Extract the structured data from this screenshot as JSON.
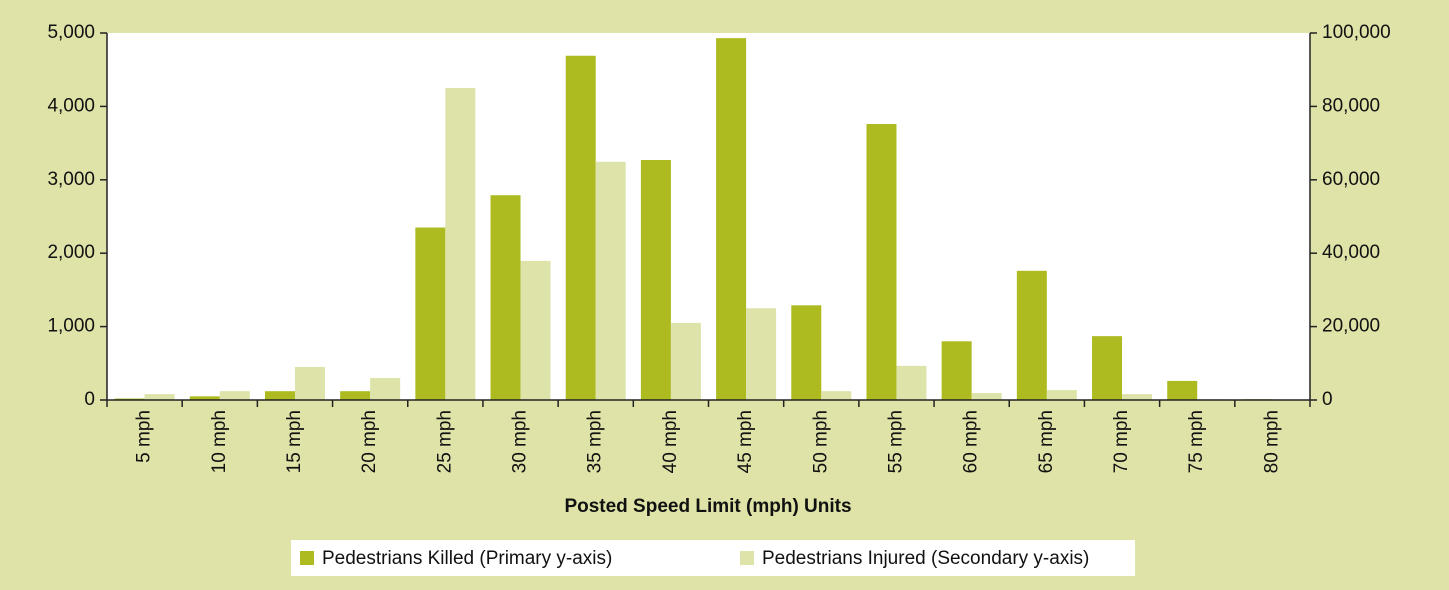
{
  "chart_data": {
    "type": "bar",
    "x_label": "Posted Speed Limit (mph) Units",
    "categories": [
      "5 mph",
      "10 mph",
      "15 mph",
      "20 mph",
      "25 mph",
      "30 mph",
      "35 mph",
      "40 mph",
      "45 mph",
      "50 mph",
      "55 mph",
      "60 mph",
      "65 mph",
      "70 mph",
      "75 mph",
      "80 mph"
    ],
    "series": [
      {
        "name": "Pedestrians Killed (Primary y-axis)",
        "color": "#adbb21",
        "axis": "y",
        "values": [
          20,
          50,
          120,
          120,
          2350,
          2790,
          4690,
          3270,
          4930,
          1290,
          3760,
          800,
          1760,
          870,
          260,
          10
        ]
      },
      {
        "name": "Pedestrians Injured (Secondary y-axis)",
        "color": "#dde3a9",
        "axis": "y2",
        "values": [
          1600,
          2400,
          9000,
          6000,
          85000,
          37900,
          64900,
          21000,
          25000,
          2400,
          9300,
          1900,
          2700,
          1600,
          200,
          0
        ]
      }
    ],
    "ylim": [
      0,
      5000
    ],
    "yticks": [
      0,
      {
        "value": 1000,
        "label": "1,000"
      },
      {
        "value": 2000,
        "label": "2,000"
      },
      {
        "value": 3000,
        "label": "3,000"
      },
      {
        "value": 4000,
        "label": "4,000"
      },
      {
        "value": 5000,
        "label": "5,000"
      }
    ],
    "y2lim": [
      0,
      100000
    ],
    "y2ticks": [
      0,
      {
        "value": 20000,
        "label": "20,000"
      },
      {
        "value": 40000,
        "label": "40,000"
      },
      {
        "value": 60000,
        "label": "60,000"
      },
      {
        "value": 80000,
        "label": "80,000"
      },
      {
        "value": 100000,
        "label": "100,000"
      }
    ],
    "grid": false,
    "legend": "bottom"
  }
}
